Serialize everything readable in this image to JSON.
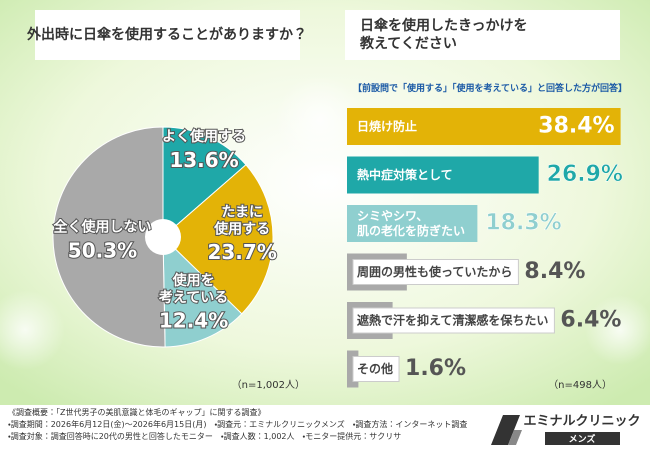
{
  "chart_data": [
    {
      "type": "pie",
      "title": "外出時に日傘を使用することがありますか？",
      "categories": [
        "よく使用する",
        "たまに\n使用する",
        "使用を\n考えている",
        "全く使用しない"
      ],
      "values": [
        13.6,
        23.7,
        12.4,
        50.3
      ],
      "value_labels": [
        "13.6%",
        "23.7%",
        "12.4%",
        "50.3%"
      ],
      "colors": [
        "#1fa8a8",
        "#e3b307",
        "#8fcfcf",
        "#a9a9a9"
      ],
      "note": "（n=1,002人）"
    },
    {
      "type": "barh",
      "title": "日傘を使用したきっかけを\n教えてください",
      "subtitle": "【前設問で「使用する」「使用を考えている」と回答した方が回答】",
      "categories": [
        "日焼け防止",
        "熱中症対策として",
        "シミやシワ、\n肌の老化を防ぎたい",
        "周囲の男性も使っていたから",
        "遮熱で汗を抑えて清潔感を保ちたい",
        "その他"
      ],
      "values": [
        38.4,
        26.9,
        18.3,
        8.4,
        6.4,
        1.6
      ],
      "value_labels": [
        "38.4%",
        "26.9%",
        "18.3%",
        "8.4%",
        "6.4%",
        "1.6%"
      ],
      "colors": [
        "#e3b307",
        "#1fa8a8",
        "#8fcfcf",
        "#a9a9a9",
        "#a9a9a9",
        "#a9a9a9"
      ],
      "xlim": [
        0,
        40
      ],
      "note": "（n=498人）"
    }
  ],
  "footer": {
    "lines": [
      "《調査概要：「Z世代男子の美肌意識と体毛のギャップ」に関する調査》",
      "・調査期間：2026年6月12日(金)～2026年6月15日(月)　・調査元：エミナルクリニックメンズ　・調査方法：インターネット調査",
      "・調査対象：調査回答時に20代の男性と回答したモニター　・調査人数：1,002人　・モニター提供元：サクリサ"
    ],
    "logo": "エミナルクリニック",
    "logo_sub": "メンズ"
  }
}
